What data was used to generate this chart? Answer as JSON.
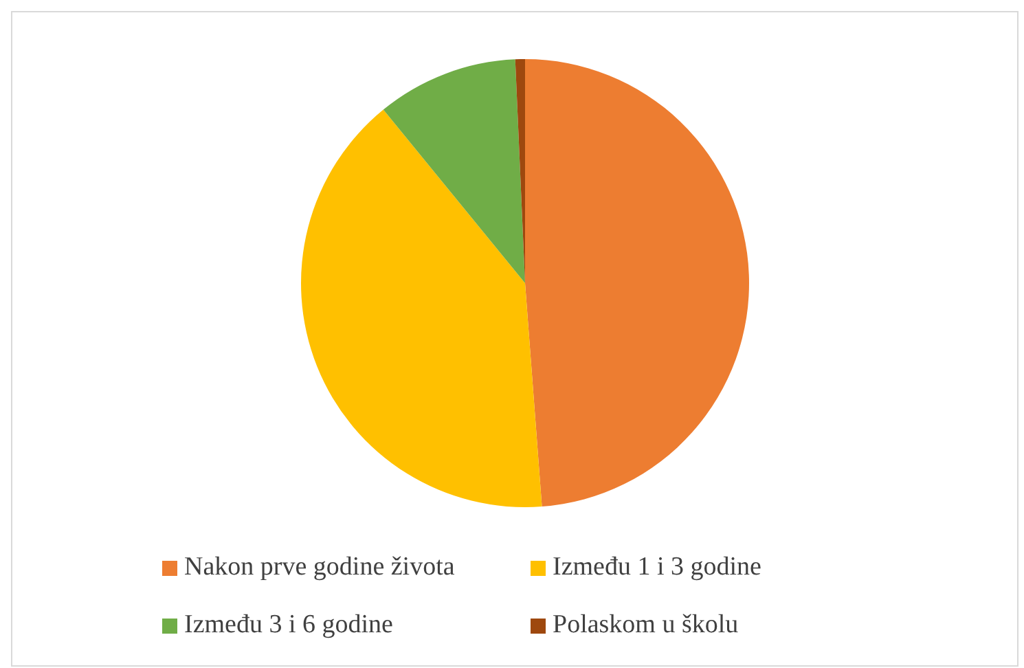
{
  "chart_data": {
    "type": "pie",
    "categories": [
      "Nakon prve godine života",
      "Između 1 i 3 godine",
      "Između 3 i 6 godine",
      "Polaskom u školu"
    ],
    "values": [
      48.8,
      40.3,
      10.2,
      0.7
    ],
    "colors": [
      "#ed7d31",
      "#ffc000",
      "#70ad47",
      "#9e480e"
    ],
    "legend": "bottom"
  }
}
